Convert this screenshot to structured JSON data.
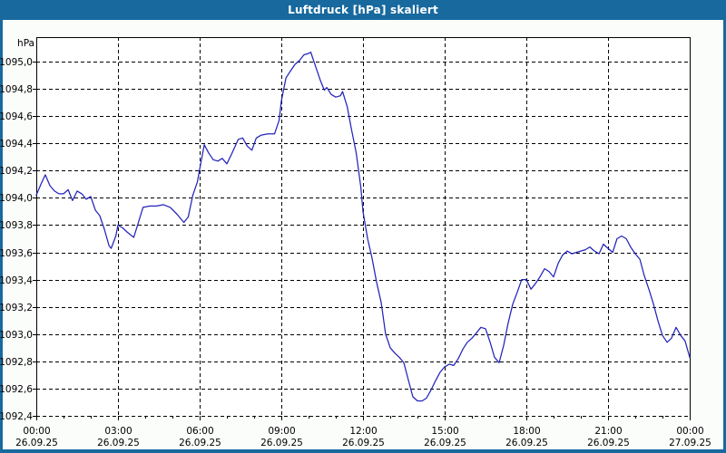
{
  "window": {
    "title": "Luftdruck [hPa] skaliert"
  },
  "colors": {
    "titlebar_bg": "#17699E",
    "titlebar_text": "#FFFFFF",
    "window_border": "#17699E",
    "panel_bg": "#FBFDFB",
    "plot_bg": "#FEFFFE",
    "grid": "#000000",
    "axis_text": "#000000",
    "line": "#2424BB"
  },
  "chart_data": {
    "type": "line",
    "title": "Luftdruck [hPa] skaliert",
    "ylabel_unit": "hPa",
    "grid": "dashed",
    "legend": "none",
    "xlim_hours": [
      0,
      24
    ],
    "ylim": [
      1092.4,
      1095.18
    ],
    "y_ticks": [
      {
        "value": 1095.0,
        "label": "1095,0"
      },
      {
        "value": 1094.8,
        "label": "1094,8"
      },
      {
        "value": 1094.6,
        "label": "1094,6"
      },
      {
        "value": 1094.4,
        "label": "1094,4"
      },
      {
        "value": 1094.2,
        "label": "1094,2"
      },
      {
        "value": 1094.0,
        "label": "1094,0"
      },
      {
        "value": 1093.8,
        "label": "1093,8"
      },
      {
        "value": 1093.6,
        "label": "1093,6"
      },
      {
        "value": 1093.4,
        "label": "1093,4"
      },
      {
        "value": 1093.2,
        "label": "1093,2"
      },
      {
        "value": 1093.0,
        "label": "1093,0"
      },
      {
        "value": 1092.8,
        "label": "1092,8"
      },
      {
        "value": 1092.6,
        "label": "1092,6"
      },
      {
        "value": 1092.4,
        "label": "1092,4"
      }
    ],
    "x_ticks": [
      {
        "h": 0,
        "time": "00:00",
        "date": "26.09.25"
      },
      {
        "h": 3,
        "time": "03:00",
        "date": "26.09.25"
      },
      {
        "h": 6,
        "time": "06:00",
        "date": "26.09.25"
      },
      {
        "h": 9,
        "time": "09:00",
        "date": "26.09.25"
      },
      {
        "h": 12,
        "time": "12:00",
        "date": "26.09.25"
      },
      {
        "h": 15,
        "time": "15:00",
        "date": "26.09.25"
      },
      {
        "h": 18,
        "time": "18:00",
        "date": "26.09.25"
      },
      {
        "h": 21,
        "time": "21:00",
        "date": "26.09.25"
      },
      {
        "h": 24,
        "time": "00:00",
        "date": "27.09.25"
      }
    ],
    "minor_x_tick_every_hours": 1,
    "series": [
      {
        "name": "Luftdruck [hPa] skaliert",
        "points": [
          [
            0.0,
            1094.02
          ],
          [
            0.17,
            1094.1
          ],
          [
            0.33,
            1094.17
          ],
          [
            0.5,
            1094.09
          ],
          [
            0.67,
            1094.05
          ],
          [
            0.83,
            1094.03
          ],
          [
            1.0,
            1094.03
          ],
          [
            1.17,
            1094.06
          ],
          [
            1.33,
            1093.98
          ],
          [
            1.5,
            1094.05
          ],
          [
            1.67,
            1094.03
          ],
          [
            1.83,
            1093.99
          ],
          [
            2.0,
            1094.01
          ],
          [
            2.17,
            1093.91
          ],
          [
            2.33,
            1093.87
          ],
          [
            2.5,
            1093.77
          ],
          [
            2.67,
            1093.65
          ],
          [
            2.75,
            1093.63
          ],
          [
            2.92,
            1093.72
          ],
          [
            3.0,
            1093.8
          ],
          [
            3.17,
            1093.78
          ],
          [
            3.33,
            1093.75
          ],
          [
            3.58,
            1093.71
          ],
          [
            3.75,
            1093.82
          ],
          [
            3.92,
            1093.93
          ],
          [
            4.17,
            1093.94
          ],
          [
            4.42,
            1093.94
          ],
          [
            4.67,
            1093.95
          ],
          [
            4.92,
            1093.93
          ],
          [
            5.17,
            1093.88
          ],
          [
            5.42,
            1093.82
          ],
          [
            5.58,
            1093.86
          ],
          [
            5.75,
            1094.02
          ],
          [
            5.92,
            1094.12
          ],
          [
            6.0,
            1094.21
          ],
          [
            6.17,
            1094.39
          ],
          [
            6.33,
            1094.33
          ],
          [
            6.5,
            1094.28
          ],
          [
            6.67,
            1094.27
          ],
          [
            6.83,
            1094.29
          ],
          [
            7.0,
            1094.25
          ],
          [
            7.17,
            1094.32
          ],
          [
            7.42,
            1094.43
          ],
          [
            7.58,
            1094.44
          ],
          [
            7.75,
            1094.38
          ],
          [
            7.92,
            1094.35
          ],
          [
            8.08,
            1094.44
          ],
          [
            8.25,
            1094.46
          ],
          [
            8.5,
            1094.47
          ],
          [
            8.75,
            1094.47
          ],
          [
            8.92,
            1094.57
          ],
          [
            9.0,
            1094.71
          ],
          [
            9.17,
            1094.88
          ],
          [
            9.33,
            1094.93
          ],
          [
            9.5,
            1094.98
          ],
          [
            9.67,
            1095.01
          ],
          [
            9.83,
            1095.05
          ],
          [
            10.0,
            1095.06
          ],
          [
            10.08,
            1095.07
          ],
          [
            10.25,
            1094.97
          ],
          [
            10.42,
            1094.87
          ],
          [
            10.58,
            1094.79
          ],
          [
            10.67,
            1094.81
          ],
          [
            10.83,
            1094.76
          ],
          [
            11.0,
            1094.74
          ],
          [
            11.17,
            1094.75
          ],
          [
            11.25,
            1094.78
          ],
          [
            11.42,
            1094.67
          ],
          [
            11.58,
            1094.5
          ],
          [
            11.75,
            1094.33
          ],
          [
            11.92,
            1094.08
          ],
          [
            12.0,
            1093.9
          ],
          [
            12.17,
            1093.7
          ],
          [
            12.33,
            1093.56
          ],
          [
            12.5,
            1093.38
          ],
          [
            12.67,
            1093.23
          ],
          [
            12.83,
            1093.0
          ],
          [
            13.0,
            1092.9
          ],
          [
            13.17,
            1092.86
          ],
          [
            13.33,
            1092.83
          ],
          [
            13.5,
            1092.79
          ],
          [
            13.67,
            1092.66
          ],
          [
            13.83,
            1092.54
          ],
          [
            14.0,
            1092.51
          ],
          [
            14.17,
            1092.51
          ],
          [
            14.33,
            1092.53
          ],
          [
            14.5,
            1092.59
          ],
          [
            14.67,
            1092.66
          ],
          [
            14.83,
            1092.72
          ],
          [
            15.0,
            1092.76
          ],
          [
            15.17,
            1092.78
          ],
          [
            15.33,
            1092.77
          ],
          [
            15.5,
            1092.82
          ],
          [
            15.67,
            1092.89
          ],
          [
            15.83,
            1092.94
          ],
          [
            16.0,
            1092.97
          ],
          [
            16.17,
            1093.01
          ],
          [
            16.33,
            1093.05
          ],
          [
            16.5,
            1093.04
          ],
          [
            16.67,
            1092.94
          ],
          [
            16.83,
            1092.83
          ],
          [
            17.0,
            1092.79
          ],
          [
            17.17,
            1092.92
          ],
          [
            17.33,
            1093.08
          ],
          [
            17.5,
            1093.22
          ],
          [
            17.67,
            1093.31
          ],
          [
            17.83,
            1093.4
          ],
          [
            18.0,
            1093.4
          ],
          [
            18.17,
            1093.33
          ],
          [
            18.33,
            1093.37
          ],
          [
            18.5,
            1093.42
          ],
          [
            18.67,
            1093.48
          ],
          [
            18.83,
            1093.46
          ],
          [
            19.0,
            1093.42
          ],
          [
            19.17,
            1093.52
          ],
          [
            19.33,
            1093.58
          ],
          [
            19.5,
            1093.61
          ],
          [
            19.67,
            1093.59
          ],
          [
            19.83,
            1093.6
          ],
          [
            20.0,
            1093.61
          ],
          [
            20.17,
            1093.62
          ],
          [
            20.33,
            1093.64
          ],
          [
            20.5,
            1093.61
          ],
          [
            20.67,
            1093.59
          ],
          [
            20.83,
            1093.66
          ],
          [
            21.0,
            1093.63
          ],
          [
            21.17,
            1093.6
          ],
          [
            21.33,
            1093.7
          ],
          [
            21.5,
            1093.72
          ],
          [
            21.67,
            1093.7
          ],
          [
            21.83,
            1093.64
          ],
          [
            22.0,
            1093.59
          ],
          [
            22.17,
            1093.55
          ],
          [
            22.33,
            1093.43
          ],
          [
            22.5,
            1093.33
          ],
          [
            22.67,
            1093.22
          ],
          [
            22.83,
            1093.1
          ],
          [
            23.0,
            1092.99
          ],
          [
            23.17,
            1092.94
          ],
          [
            23.33,
            1092.97
          ],
          [
            23.5,
            1093.05
          ],
          [
            23.67,
            1092.99
          ],
          [
            23.83,
            1092.95
          ],
          [
            24.0,
            1092.83
          ]
        ]
      }
    ]
  }
}
